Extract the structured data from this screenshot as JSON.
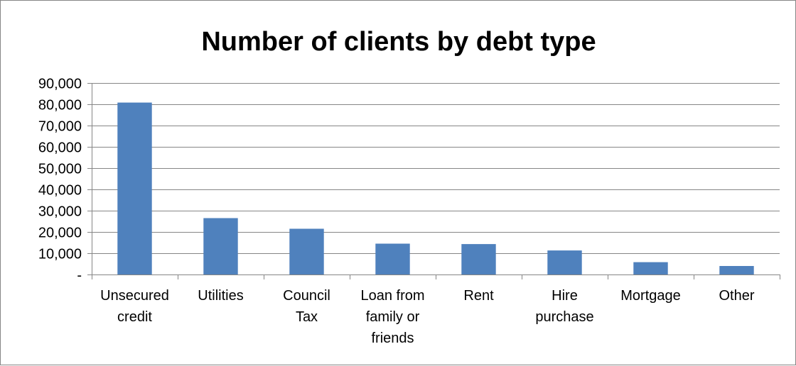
{
  "chart_data": {
    "type": "bar",
    "title": "Number of clients by debt type",
    "xlabel": "",
    "ylabel": "",
    "categories": [
      [
        "Unsecured",
        "credit"
      ],
      [
        "Utilities"
      ],
      [
        "Council",
        "Tax"
      ],
      [
        "Loan from",
        "family or",
        "friends"
      ],
      [
        "Rent"
      ],
      [
        "Hire",
        "purchase"
      ],
      [
        "Mortgage"
      ],
      [
        "Other"
      ]
    ],
    "values": [
      80800,
      26500,
      21500,
      14500,
      14300,
      11300,
      5800,
      4000
    ],
    "ylim": [
      0,
      90000
    ],
    "yticks": [
      0,
      10000,
      20000,
      30000,
      40000,
      50000,
      60000,
      70000,
      80000,
      90000
    ],
    "ytick_labels": [
      "-",
      "10,000",
      "20,000",
      "30,000",
      "40,000",
      "50,000",
      "60,000",
      "70,000",
      "80,000",
      "90,000"
    ],
    "grid": true,
    "legend": "none",
    "bar_color": "#4F81BD",
    "grid_color": "#868686"
  }
}
